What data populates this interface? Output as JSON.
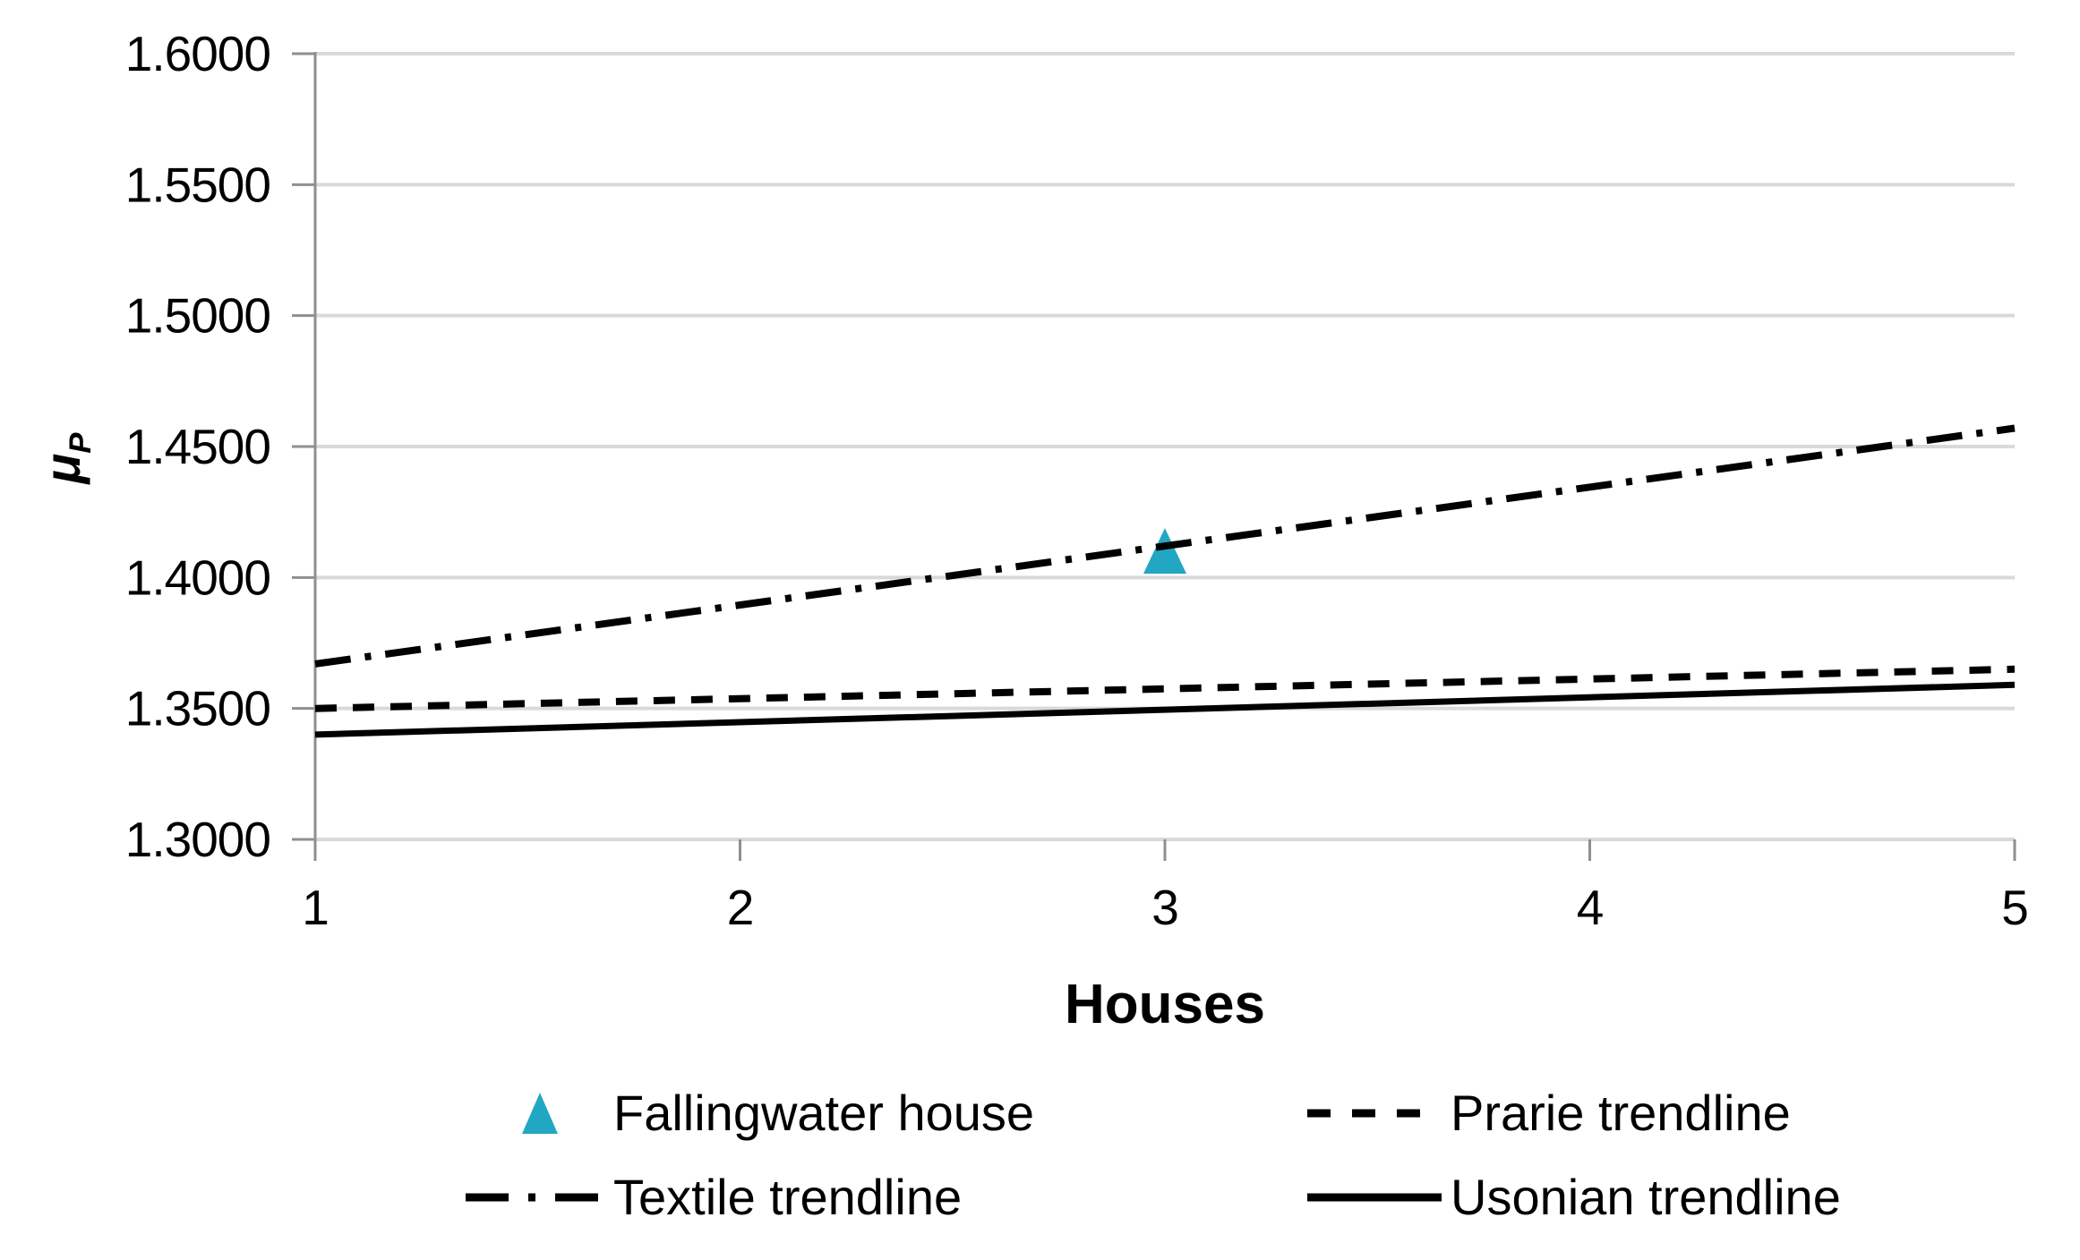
{
  "chart_data": {
    "type": "line",
    "title": "",
    "xlabel": "Houses",
    "ylabel": "μP",
    "ylabel_main": "μ",
    "ylabel_sub": "P",
    "xlim": [
      1,
      5
    ],
    "ylim": [
      1.3,
      1.6
    ],
    "x_ticks": [
      "1",
      "2",
      "3",
      "4",
      "5"
    ],
    "y_ticks": [
      "1.6000",
      "1.5500",
      "1.5000",
      "1.4500",
      "1.4000",
      "1.3500",
      "1.3000"
    ],
    "grid": "horizontal",
    "legend_position": "bottom",
    "series": [
      {
        "name": "Fallingwater house",
        "type": "scatter",
        "marker": "triangle",
        "color": "#22a7c3",
        "points": [
          [
            3,
            1.41
          ]
        ]
      },
      {
        "name": "Prarie trendline",
        "type": "line",
        "style": "dashed",
        "color": "#000000",
        "points": [
          [
            1,
            1.35
          ],
          [
            5,
            1.365
          ]
        ]
      },
      {
        "name": "Textile trendline",
        "type": "line",
        "style": "dash_dot",
        "color": "#000000",
        "points": [
          [
            1,
            1.367
          ],
          [
            5,
            1.457
          ]
        ]
      },
      {
        "name": "Usonian trendline",
        "type": "line",
        "style": "solid",
        "color": "#000000",
        "points": [
          [
            1,
            1.34
          ],
          [
            5,
            1.359
          ]
        ]
      }
    ]
  },
  "legend": {
    "rows": [
      [
        {
          "label": "Fallingwater house",
          "marker": "triangle"
        },
        {
          "label": "Prarie trendline",
          "marker": "dashed-line"
        }
      ],
      [
        {
          "label": "Textile trendline",
          "marker": "dash-dot-line"
        },
        {
          "label": "Usonian trendline",
          "marker": "solid-line"
        }
      ]
    ]
  },
  "colors": {
    "accent": "#22a7c3",
    "line": "#000000",
    "grid": "#d9d9d9",
    "axis": "#8f8f8f",
    "text": "#000000",
    "background": "#ffffff"
  }
}
